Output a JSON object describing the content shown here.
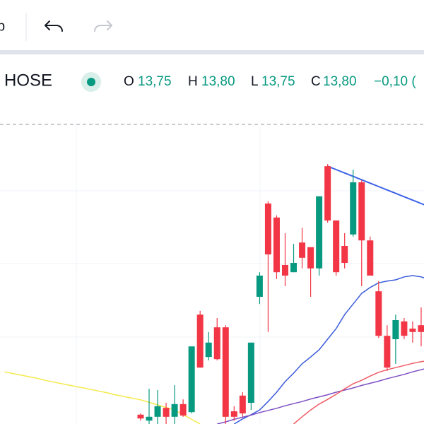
{
  "toolbar": {
    "left_text": "p"
  },
  "legend": {
    "symbol": "HOSE",
    "o_label": "O",
    "o_value": "13,75",
    "h_label": "H",
    "h_value": "13,80",
    "l_label": "L",
    "l_value": "13,75",
    "c_label": "C",
    "c_value": "13,80",
    "change": "−0,10 ("
  },
  "chart_data": {
    "type": "candlestick",
    "ylim": [
      9,
      16
    ],
    "up_color": "#089981",
    "down_color": "#f23645",
    "open": [
      null,
      null,
      null,
      null,
      null,
      null,
      null,
      null,
      null,
      null,
      null,
      null,
      null,
      null,
      null,
      null,
      9.22,
      9.08,
      9.17,
      9.38,
      9.17,
      9.47,
      9.28,
      11.58,
      10.58,
      11.28,
      11.28,
      9.3,
      9.67,
      9.5,
      12,
      14.2,
      13.87,
      12.75,
      12.58,
      13.28,
      13.17,
      12.67,
      15.08,
      13.8,
      13.2,
      13.47,
      14.7,
      13.33,
      12.13,
      11.08,
      11,
      11.42,
      11.25,
      11.33,
      null
    ],
    "high": [
      null,
      null,
      null,
      null,
      null,
      null,
      null,
      null,
      null,
      null,
      null,
      null,
      null,
      null,
      null,
      null,
      9.25,
      9.83,
      9.8,
      9.5,
      9.92,
      9.58,
      10.83,
      11.67,
      11.17,
      11.5,
      11.33,
      9.42,
      9.75,
      10.92,
      12.58,
      14.25,
      13.92,
      13.5,
      13.25,
      13.63,
      13.17,
      14.37,
      15.13,
      13.8,
      13.5,
      15,
      14.75,
      13.42,
      12.37,
      11.33,
      11.58,
      11.5,
      11.42,
      11.75,
      null
    ],
    "low": [
      null,
      null,
      null,
      null,
      null,
      null,
      null,
      null,
      null,
      null,
      null,
      null,
      null,
      null,
      null,
      null,
      9.08,
      9,
      9,
      9,
      9,
      9.17,
      9.25,
      10.33,
      10.5,
      10.5,
      9,
      9.08,
      9.17,
      9.33,
      11.83,
      11.17,
      12.42,
      12.25,
      12.58,
      12.67,
      12,
      12.5,
      13.75,
      12.5,
      12.67,
      13.42,
      12.25,
      12.5,
      11.03,
      10.25,
      10.42,
      11,
      10.92,
      10.83,
      null
    ],
    "close": [
      null,
      null,
      null,
      null,
      null,
      null,
      null,
      null,
      null,
      null,
      null,
      null,
      null,
      null,
      null,
      null,
      9.13,
      9.17,
      9.42,
      9.17,
      9.47,
      9.2,
      10.83,
      10.33,
      10.92,
      10.53,
      9.17,
      9.17,
      9.25,
      10.92,
      12.5,
      13,
      12.58,
      12.5,
      12.8,
      12.92,
      12.67,
      14.37,
      13.8,
      12.58,
      12.8,
      14.7,
      13.33,
      12.5,
      11.08,
      10.33,
      11.45,
      11.08,
      11.17,
      11.17,
      null
    ],
    "series": [
      {
        "color": "#f5e94a",
        "values": [
          10.23,
          10.19,
          10.15,
          10.11,
          10.07,
          10.02,
          9.98,
          9.94,
          9.9,
          9.86,
          9.82,
          9.78,
          9.74,
          9.69,
          9.65,
          9.61,
          9.57,
          9.51,
          9.45,
          9.39,
          9.33,
          9.22,
          9.11,
          9.0,
          null,
          null,
          null,
          null,
          null,
          null,
          null,
          null,
          null,
          null,
          null,
          null,
          null,
          null,
          null,
          null,
          null,
          null,
          null,
          null,
          null,
          null,
          null,
          null,
          null,
          null,
          null
        ]
      },
      {
        "color": "#3a5bd9",
        "values": [
          null,
          null,
          null,
          null,
          null,
          null,
          null,
          null,
          null,
          null,
          null,
          null,
          null,
          null,
          null,
          null,
          null,
          null,
          null,
          null,
          null,
          null,
          null,
          null,
          null,
          null,
          null,
          9.0,
          9.12,
          9.22,
          9.33,
          9.53,
          9.75,
          10,
          10.2,
          10.42,
          10.58,
          10.75,
          11,
          11.25,
          11.58,
          11.83,
          12.08,
          12.22,
          12.33,
          12.37,
          12.4,
          12.47,
          12.5,
          12.47,
          12.4
        ]
      },
      {
        "color": "#7e4fc4",
        "values": [
          null,
          null,
          null,
          null,
          null,
          null,
          null,
          null,
          null,
          null,
          null,
          null,
          null,
          null,
          null,
          null,
          null,
          null,
          null,
          null,
          null,
          null,
          null,
          null,
          null,
          9.0,
          9.05,
          9.11,
          9.16,
          9.21,
          9.27,
          9.32,
          9.37,
          9.43,
          9.48,
          9.53,
          9.59,
          9.64,
          9.69,
          9.75,
          9.8,
          9.85,
          9.91,
          9.96,
          10.01,
          10.07,
          10.12,
          10.17,
          10.23,
          10.28,
          10.33
        ]
      },
      {
        "color": "#ef5a64",
        "values": [
          null,
          null,
          null,
          null,
          null,
          null,
          null,
          null,
          null,
          null,
          null,
          null,
          null,
          null,
          null,
          null,
          null,
          null,
          null,
          null,
          null,
          null,
          null,
          null,
          null,
          null,
          null,
          null,
          null,
          null,
          null,
          null,
          null,
          null,
          9.0,
          9.17,
          9.33,
          9.47,
          9.58,
          9.7,
          9.83,
          9.95,
          10.03,
          10.13,
          10.22,
          10.28,
          10.33,
          10.38,
          10.43,
          10.47,
          10.5
        ]
      },
      {
        "color": "#3d63e8",
        "values": [
          null,
          null,
          null,
          null,
          null,
          null,
          null,
          null,
          null,
          null,
          null,
          null,
          null,
          null,
          null,
          null,
          null,
          null,
          null,
          null,
          null,
          null,
          null,
          null,
          null,
          null,
          null,
          null,
          null,
          null,
          null,
          null,
          null,
          null,
          null,
          null,
          null,
          null,
          15.08,
          15.0,
          14.92,
          14.84,
          14.76,
          14.68,
          14.6,
          14.52,
          14.44,
          14.36,
          14.28,
          14.2,
          14.12
        ]
      }
    ]
  }
}
